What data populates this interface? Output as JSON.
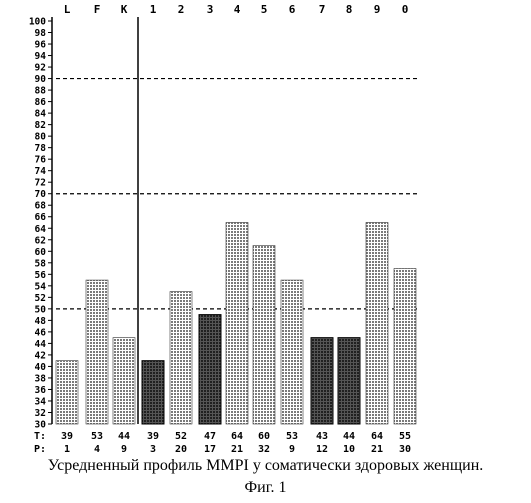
{
  "chart_data": {
    "type": "bar",
    "title": "",
    "xlabel": "",
    "ylabel": "",
    "categories": [
      "L",
      "F",
      "K",
      "1",
      "2",
      "3",
      "4",
      "5",
      "6",
      "7",
      "8",
      "9",
      "0"
    ],
    "values": [
      41,
      55,
      45,
      41,
      53,
      49,
      65,
      61,
      55,
      45,
      45,
      65,
      57
    ],
    "ylim": [
      30,
      100
    ],
    "yticks_step": 2,
    "reference_lines": [
      50,
      70,
      90
    ],
    "t_row_label": "T:",
    "t_values": [
      "39",
      "53",
      "44",
      "39",
      "52",
      "47",
      "64",
      "60",
      "53",
      "43",
      "44",
      "64",
      "55"
    ],
    "bottom_row_label": "P:",
    "bottom_values": [
      "1",
      "4",
      "9",
      "3",
      "20",
      "17",
      "21",
      "32",
      "9",
      "12",
      "10",
      "21",
      "30"
    ],
    "highlighted_bars": [
      "1",
      "3",
      "7",
      "8"
    ],
    "grid": false,
    "colors": {
      "normal_fill": "#7a7a7a",
      "highlight_fill": "#202020",
      "line": "#000000"
    }
  },
  "caption": {
    "line1": "Усредненный профиль MMPI у соматически здоровых женщин.",
    "line2": "Фиг. 1"
  }
}
